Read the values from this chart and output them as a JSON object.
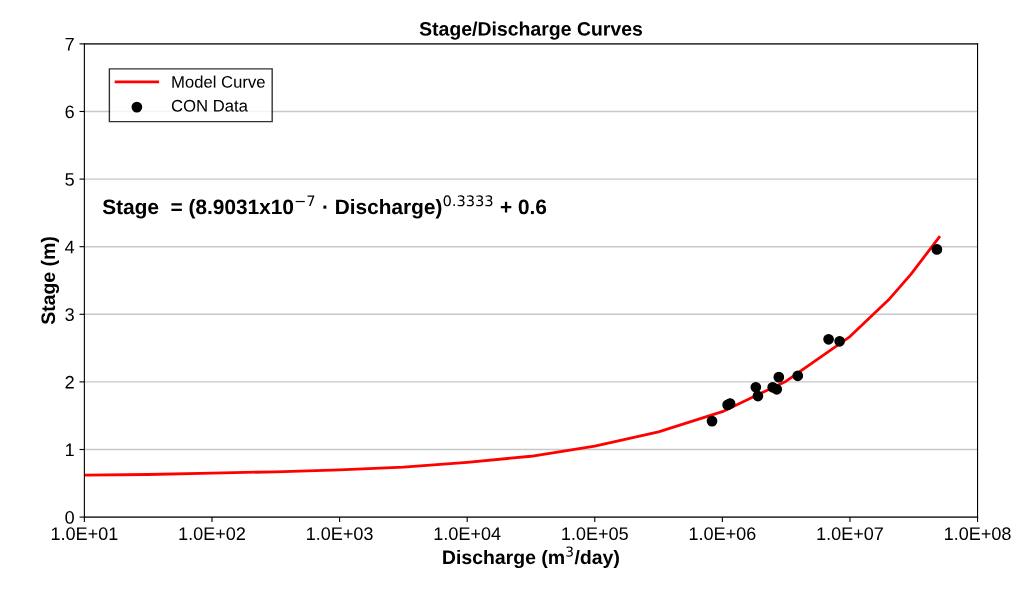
{
  "chart_data": {
    "type": "line",
    "title": "Stage/Discharge Curves",
    "xlabel": "Discharge (m$^{3}$/day)",
    "ylabel": "Stage (m)",
    "annotations": [
      "Stage  = (8.9031x10$^{−7}$ · Discharge)$^{0.3333}$ + 0.6"
    ],
    "series": [
      {
        "name": "Model Curve",
        "color": "#ff0000",
        "marker": "none",
        "line_style": "solid",
        "x": [
          10,
          31.6,
          100,
          316,
          1000,
          3162,
          10000,
          31620,
          100000,
          316200,
          1000000,
          3162000,
          10000000,
          20000000,
          30000000,
          50000000
        ],
        "values": [
          0.62,
          0.63,
          0.65,
          0.67,
          0.7,
          0.74,
          0.81,
          0.9,
          1.05,
          1.26,
          1.56,
          2.01,
          2.67,
          3.21,
          3.59,
          4.14
        ]
      },
      {
        "name": "CON Data",
        "type": "scatter",
        "color": "#000000",
        "marker": "circle",
        "x": [
          830000,
          1100000,
          1150000,
          1830000,
          1900000,
          2480000,
          2670000,
          2770000,
          3900000,
          6800000,
          8300000,
          48000000
        ],
        "values": [
          1.42,
          1.66,
          1.68,
          1.92,
          1.79,
          1.92,
          1.89,
          2.07,
          2.09,
          2.63,
          2.6,
          3.96
        ]
      }
    ],
    "log": "x",
    "xlim": [
      10,
      100000000
    ],
    "xticks": [
      {
        "value": 10,
        "label": "1.0E+01"
      },
      {
        "value": 100,
        "label": "1.0E+02"
      },
      {
        "value": 1000,
        "label": "1.0E+03"
      },
      {
        "value": 10000,
        "label": "1.0E+04"
      },
      {
        "value": 100000,
        "label": "1.0E+05"
      },
      {
        "value": 1000000,
        "label": "1.0E+06"
      },
      {
        "value": 10000000,
        "label": "1.0E+07"
      },
      {
        "value": 100000000,
        "label": "1.0E+08"
      }
    ],
    "ylim": [
      0,
      7
    ],
    "yticks": [
      0,
      1,
      2,
      3,
      4,
      5,
      6,
      7
    ],
    "grid": "y",
    "legend": "top left"
  }
}
